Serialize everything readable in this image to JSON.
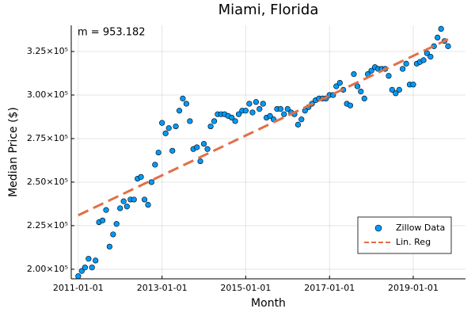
{
  "chart_data": {
    "type": "scatter",
    "title": "Miami, Florida",
    "x_label": "Month",
    "y_label": "Median Price ($)",
    "annotation": "m = 953.182",
    "xlim": [
      "2010-11-01",
      "2020-04-01"
    ],
    "xticks": [
      "2011-01-01",
      "2013-01-01",
      "2015-01-01",
      "2017-01-01",
      "2019-01-01"
    ],
    "ylim": [
      194500,
      340000
    ],
    "yticks": [
      {
        "value": 200000,
        "label": "2.00×10⁵"
      },
      {
        "value": 225000,
        "label": "2.25×10⁵"
      },
      {
        "value": 250000,
        "label": "2.50×10⁵"
      },
      {
        "value": 275000,
        "label": "2.75×10⁵"
      },
      {
        "value": 300000,
        "label": "3.00×10⁵"
      },
      {
        "value": 325000,
        "label": "3.25×10⁵"
      }
    ],
    "grid": true,
    "legend": "bottom right",
    "series": [
      {
        "name": "Zillow Data",
        "color": "#009af9",
        "type": "scatter",
        "x": [
          "2011-01-01",
          "2011-02-01",
          "2011-03-01",
          "2011-04-01",
          "2011-05-01",
          "2011-06-01",
          "2011-07-01",
          "2011-08-01",
          "2011-09-01",
          "2011-10-01",
          "2011-11-01",
          "2011-12-01",
          "2012-01-01",
          "2012-02-01",
          "2012-03-01",
          "2012-04-01",
          "2012-05-01",
          "2012-06-01",
          "2012-07-01",
          "2012-08-01",
          "2012-09-01",
          "2012-10-01",
          "2012-11-01",
          "2012-12-01",
          "2013-01-01",
          "2013-02-01",
          "2013-03-01",
          "2013-04-01",
          "2013-05-01",
          "2013-06-01",
          "2013-07-01",
          "2013-08-01",
          "2013-09-01",
          "2013-10-01",
          "2013-11-01",
          "2013-12-01",
          "2014-01-01",
          "2014-02-01",
          "2014-03-01",
          "2014-04-01",
          "2014-05-01",
          "2014-06-01",
          "2014-07-01",
          "2014-08-01",
          "2014-09-01",
          "2014-10-01",
          "2014-11-01",
          "2014-12-01",
          "2015-01-01",
          "2015-02-01",
          "2015-03-01",
          "2015-04-01",
          "2015-05-01",
          "2015-06-01",
          "2015-07-01",
          "2015-08-01",
          "2015-09-01",
          "2015-10-01",
          "2015-11-01",
          "2015-12-01",
          "2016-01-01",
          "2016-02-01",
          "2016-03-01",
          "2016-04-01",
          "2016-05-01",
          "2016-06-01",
          "2016-07-01",
          "2016-08-01",
          "2016-09-01",
          "2016-10-01",
          "2016-11-01",
          "2016-12-01",
          "2017-01-01",
          "2017-02-01",
          "2017-03-01",
          "2017-04-01",
          "2017-05-01",
          "2017-06-01",
          "2017-07-01",
          "2017-08-01",
          "2017-09-01",
          "2017-10-01",
          "2017-11-01",
          "2017-12-01",
          "2018-01-01",
          "2018-02-01",
          "2018-03-01",
          "2018-04-01",
          "2018-05-01",
          "2018-06-01",
          "2018-07-01",
          "2018-08-01",
          "2018-09-01",
          "2018-10-01",
          "2018-11-01",
          "2018-12-01",
          "2019-01-01",
          "2019-02-01",
          "2019-03-01",
          "2019-04-01",
          "2019-05-01",
          "2019-06-01",
          "2019-07-01",
          "2019-08-01",
          "2019-09-01",
          "2019-10-01",
          "2019-11-01"
        ],
        "values": [
          196000,
          199000,
          201000,
          206000,
          201000,
          205000,
          227000,
          228000,
          234000,
          213000,
          220000,
          226000,
          235000,
          239000,
          236000,
          240000,
          240000,
          252000,
          253000,
          240000,
          237000,
          250000,
          260000,
          267000,
          284000,
          278000,
          281000,
          268000,
          282000,
          291000,
          298000,
          295000,
          285000,
          269000,
          270000,
          262000,
          272000,
          269000,
          282000,
          285000,
          289000,
          289000,
          289000,
          288000,
          287000,
          285000,
          289000,
          291000,
          291000,
          295000,
          290000,
          296000,
          292000,
          295000,
          287000,
          288000,
          286000,
          292000,
          292000,
          289000,
          292000,
          290000,
          289000,
          283000,
          286000,
          291000,
          293000,
          295000,
          297000,
          298000,
          298000,
          298000,
          300000,
          300000,
          305000,
          307000,
          303000,
          295000,
          294000,
          312000,
          305000,
          302000,
          298000,
          312000,
          314000,
          316000,
          315000,
          315000,
          315000,
          311000,
          303000,
          301000,
          303000,
          315000,
          318000,
          306000,
          306000,
          318000,
          319000,
          320000,
          324000,
          322000,
          328000,
          333000,
          338000,
          331000,
          328000
        ]
      },
      {
        "name": "Lin. Reg",
        "color": "#e26f46",
        "type": "line",
        "x": [
          "2011-01-01",
          "2019-11-01"
        ],
        "values": [
          231000,
          332000
        ]
      }
    ]
  }
}
